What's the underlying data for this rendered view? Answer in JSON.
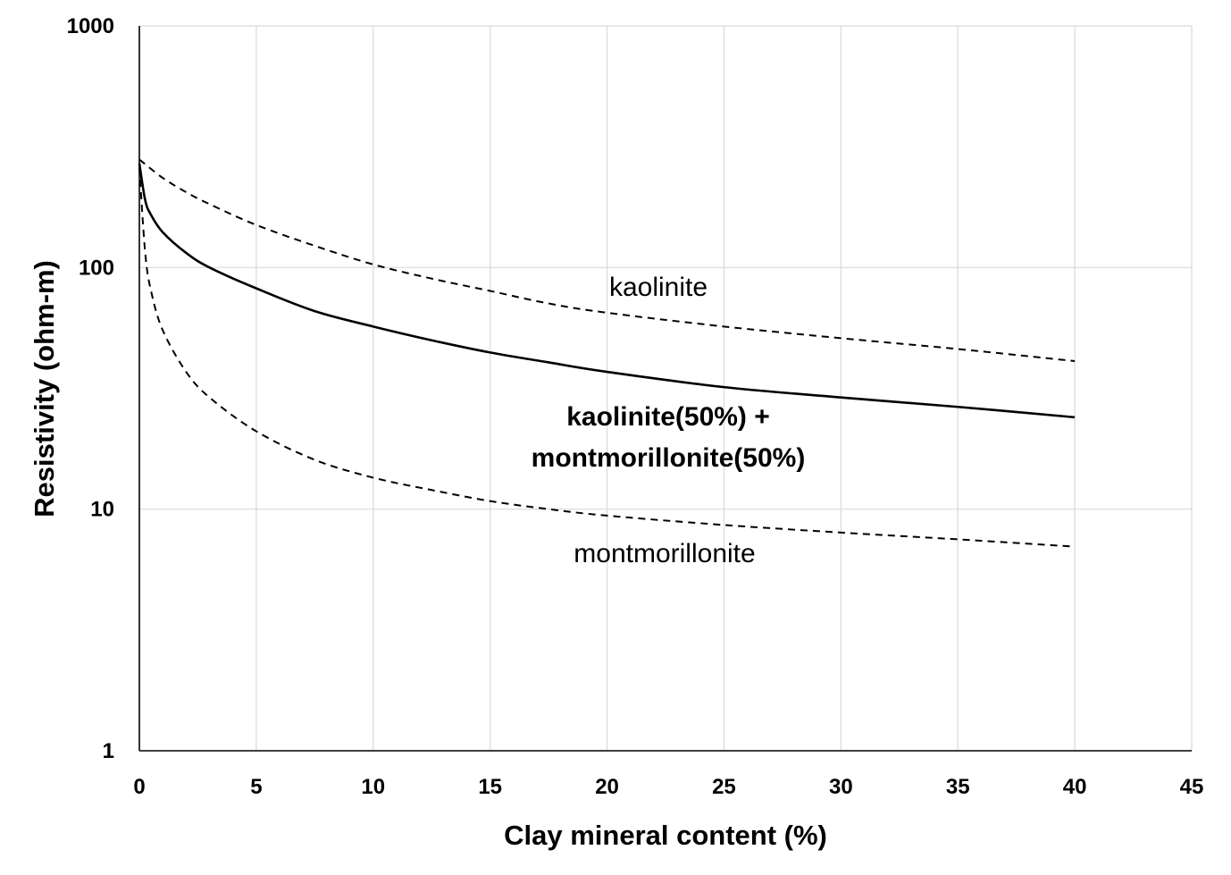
{
  "chart_data": {
    "type": "line",
    "xlabel": "Clay mineral content (%)",
    "ylabel": "Resistivity (ohm-m)",
    "xlim": [
      0,
      45
    ],
    "ylim": [
      1,
      1000
    ],
    "yscale": "log",
    "grid": true,
    "xticks": [
      "0",
      "5",
      "10",
      "15",
      "20",
      "25",
      "30",
      "35",
      "40",
      "45"
    ],
    "yticks": [
      "1",
      "10",
      "100",
      "1000"
    ],
    "series": [
      {
        "name": "kaolinite",
        "style": "dashed",
        "label_lines": [
          "kaolinite"
        ],
        "x": [
          0,
          1,
          2,
          3,
          5,
          7.5,
          10,
          12.5,
          15,
          17.5,
          20,
          25,
          30,
          35,
          40
        ],
        "y": [
          280,
          235,
          205,
          183,
          150,
          123,
          103,
          90,
          80,
          71,
          65,
          57,
          51,
          46,
          41
        ]
      },
      {
        "name": "kaolinite(50%)+montmorillonite(50%)",
        "style": "solid",
        "label_lines": [
          "kaolinite(50%) +",
          "montmorillonite(50%)"
        ],
        "x": [
          0,
          0.25,
          0.5,
          1,
          2,
          3,
          5,
          7.5,
          10,
          12.5,
          15,
          17.5,
          20,
          25,
          30,
          35,
          40
        ],
        "y": [
          270,
          190,
          165,
          140,
          115,
          100,
          82,
          66,
          57,
          50,
          44.5,
          40.5,
          37,
          32,
          29,
          26.5,
          24
        ]
      },
      {
        "name": "montmorillonite",
        "style": "dashed",
        "label_lines": [
          "montmorillonite"
        ],
        "x": [
          0,
          0.25,
          0.5,
          1,
          2,
          3,
          5,
          7.5,
          10,
          12.5,
          15,
          17.5,
          20,
          25,
          30,
          35,
          40
        ],
        "y": [
          260,
          115,
          80,
          55,
          37,
          29,
          21,
          16,
          13.5,
          12,
          10.8,
          10,
          9.4,
          8.6,
          8,
          7.5,
          7
        ]
      }
    ]
  }
}
